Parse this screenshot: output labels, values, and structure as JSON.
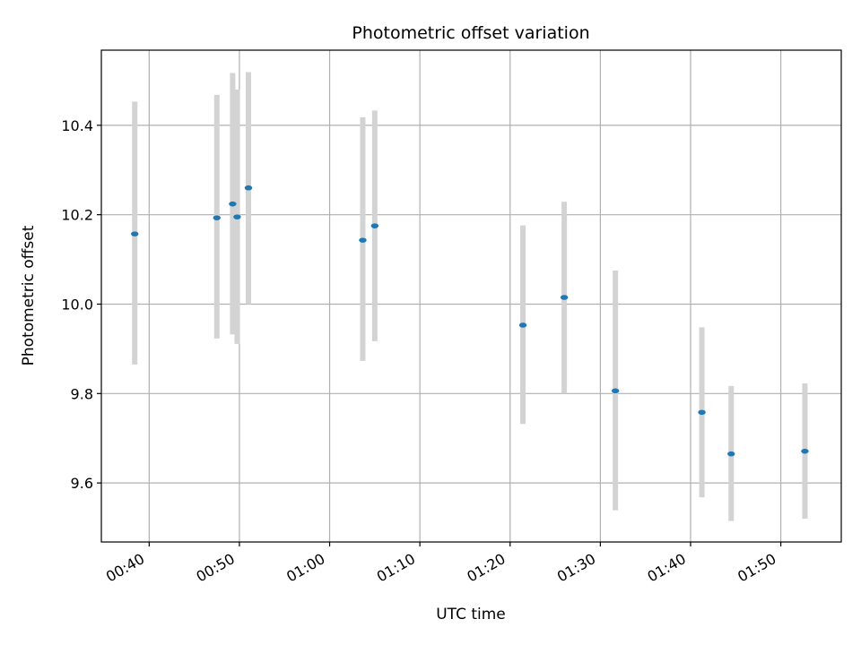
{
  "chart_data": {
    "type": "scatter",
    "title": "Photometric offset variation",
    "xlabel": "UTC time",
    "ylabel": "Photometric offset",
    "x_ticks": [
      "00:40",
      "00:50",
      "01:00",
      "01:10",
      "01:20",
      "01:30",
      "01:40",
      "01:50"
    ],
    "x_tick_minutes": [
      40,
      50,
      60,
      70,
      80,
      90,
      100,
      110
    ],
    "y_ticks": [
      "9.6",
      "9.8",
      "10.0",
      "10.2",
      "10.4"
    ],
    "y_tick_values": [
      9.6,
      9.8,
      10.0,
      10.2,
      10.4
    ],
    "xlim_minutes": [
      34.7,
      116.7
    ],
    "ylim": [
      9.468,
      10.568
    ],
    "grid": true,
    "colors": {
      "point": "#1f77b4",
      "errorbar": "#d3d3d3",
      "grid": "#b0b0b0"
    },
    "points": [
      {
        "time": "00:38:25",
        "minutes": 38.4,
        "y": 10.157,
        "err_low": 9.865,
        "err_high": 10.453
      },
      {
        "time": "00:47:30",
        "minutes": 47.5,
        "y": 10.193,
        "err_low": 9.923,
        "err_high": 10.468
      },
      {
        "time": "00:49:15",
        "minutes": 49.25,
        "y": 10.224,
        "err_low": 9.932,
        "err_high": 10.517
      },
      {
        "time": "00:49:45",
        "minutes": 49.75,
        "y": 10.195,
        "err_low": 9.911,
        "err_high": 10.48
      },
      {
        "time": "00:51:00",
        "minutes": 51.0,
        "y": 10.26,
        "err_low": 10.0,
        "err_high": 10.519
      },
      {
        "time": "01:03:40",
        "minutes": 63.67,
        "y": 10.143,
        "err_low": 9.873,
        "err_high": 10.418
      },
      {
        "time": "01:05:00",
        "minutes": 65.0,
        "y": 10.175,
        "err_low": 9.917,
        "err_high": 10.433
      },
      {
        "time": "01:21:25",
        "minutes": 81.42,
        "y": 9.953,
        "err_low": 9.732,
        "err_high": 10.176
      },
      {
        "time": "01:26:00",
        "minutes": 86.0,
        "y": 10.015,
        "err_low": 9.8,
        "err_high": 10.229
      },
      {
        "time": "01:31:40",
        "minutes": 91.67,
        "y": 9.806,
        "err_low": 9.539,
        "err_high": 10.075
      },
      {
        "time": "01:41:15",
        "minutes": 101.25,
        "y": 9.758,
        "err_low": 9.568,
        "err_high": 9.948
      },
      {
        "time": "01:44:30",
        "minutes": 104.5,
        "y": 9.665,
        "err_low": 9.515,
        "err_high": 9.817
      },
      {
        "time": "01:52:40",
        "minutes": 112.67,
        "y": 9.671,
        "err_low": 9.52,
        "err_high": 9.823
      }
    ]
  }
}
